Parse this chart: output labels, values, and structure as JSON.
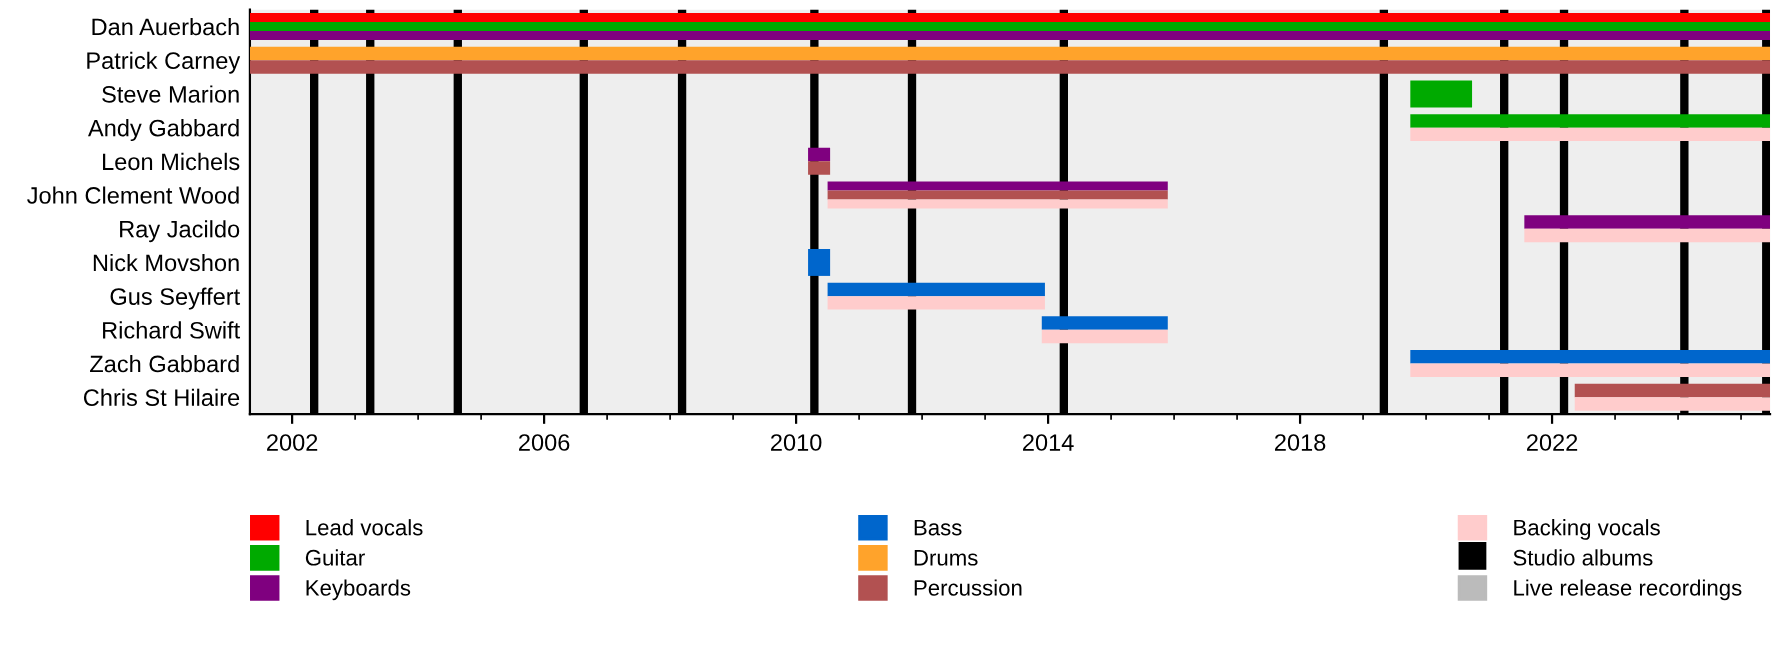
{
  "chart_data": {
    "type": "bar",
    "orientation": "horizontal",
    "categories": [
      "Dan Auerbach",
      "Patrick Carney",
      "Steve Marion",
      "Andy Gabbard",
      "Leon Michels",
      "John Clement Wood",
      "Ray Jacildo",
      "Nick Movshon",
      "Gus Seyffert",
      "Richard Swift",
      "Zach Gabbard",
      "Chris St Hilaire"
    ],
    "series": [
      {
        "name": "Lead vocals",
        "color": "#ff0000",
        "base": [
          2001.33,
          null,
          null,
          null,
          null,
          null,
          null,
          null,
          null,
          null,
          null,
          null
        ],
        "values": [
          24.13,
          null,
          null,
          null,
          null,
          null,
          null,
          null,
          null,
          null,
          null,
          null
        ]
      },
      {
        "name": "Guitar",
        "color": "#00aa00",
        "base": [
          2001.33,
          null,
          2019.75,
          2019.75,
          null,
          null,
          null,
          null,
          null,
          null,
          null,
          null
        ],
        "values": [
          24.13,
          null,
          0.98,
          5.71,
          null,
          null,
          null,
          null,
          null,
          null,
          null,
          null
        ]
      },
      {
        "name": "Keyboards",
        "color": "#7f007f",
        "base": [
          2001.33,
          null,
          null,
          null,
          2010.19,
          2010.5,
          2021.56,
          null,
          null,
          null,
          null,
          null
        ],
        "values": [
          24.13,
          null,
          null,
          null,
          0.35,
          5.4,
          3.9,
          null,
          null,
          null,
          null,
          null
        ]
      },
      {
        "name": "Bass",
        "color": "#0066cc",
        "base": [
          null,
          null,
          null,
          null,
          null,
          null,
          null,
          2010.19,
          2010.5,
          2013.9,
          2019.75,
          null
        ],
        "values": [
          null,
          null,
          null,
          null,
          null,
          null,
          null,
          0.35,
          3.45,
          2.0,
          5.71,
          null
        ]
      },
      {
        "name": "Drums",
        "color": "#ffa32b",
        "base": [
          null,
          2001.33,
          null,
          null,
          null,
          null,
          null,
          null,
          null,
          null,
          null,
          null
        ],
        "values": [
          null,
          24.13,
          null,
          null,
          null,
          null,
          null,
          null,
          null,
          null,
          null,
          null
        ]
      },
      {
        "name": "Percussion",
        "color": "#b25151",
        "base": [
          null,
          2001.33,
          null,
          null,
          2010.19,
          2010.5,
          null,
          null,
          null,
          null,
          null,
          2022.36
        ],
        "values": [
          null,
          24.13,
          null,
          null,
          0.35,
          5.4,
          null,
          null,
          null,
          null,
          null,
          3.1
        ]
      },
      {
        "name": "Backing vocals",
        "color": "#ffcccc",
        "base": [
          null,
          null,
          null,
          2019.75,
          null,
          2010.5,
          2021.56,
          null,
          2010.5,
          2013.9,
          2019.75,
          2022.36
        ],
        "values": [
          null,
          null,
          null,
          5.71,
          null,
          5.4,
          3.9,
          null,
          3.45,
          2.0,
          5.71,
          3.1
        ]
      },
      {
        "name": "Live release recordings",
        "color": "#bbbbbb",
        "values": [
          null,
          null,
          null,
          null,
          null,
          null,
          null,
          null,
          null,
          null,
          null,
          null
        ]
      }
    ],
    "ref_lines": [
      {
        "axis": "x",
        "value": 2002.35,
        "label": "Studio albums",
        "color": "#000000"
      },
      {
        "axis": "x",
        "value": 2003.24,
        "label": null,
        "color": "#000000"
      },
      {
        "axis": "x",
        "value": 2004.63,
        "label": null,
        "color": "#000000"
      },
      {
        "axis": "x",
        "value": 2006.63,
        "label": null,
        "color": "#000000"
      },
      {
        "axis": "x",
        "value": 2008.19,
        "label": null,
        "color": "#000000"
      },
      {
        "axis": "x",
        "value": 2010.29,
        "label": null,
        "color": "#000000"
      },
      {
        "axis": "x",
        "value": 2011.84,
        "label": null,
        "color": "#000000"
      },
      {
        "axis": "x",
        "value": 2014.25,
        "label": null,
        "color": "#000000"
      },
      {
        "axis": "x",
        "value": 2019.33,
        "label": null,
        "color": "#000000"
      },
      {
        "axis": "x",
        "value": 2021.24,
        "label": null,
        "color": "#000000"
      },
      {
        "axis": "x",
        "value": 2022.19,
        "label": null,
        "color": "#000000"
      },
      {
        "axis": "x",
        "value": 2024.1,
        "label": null,
        "color": "#000000"
      },
      {
        "axis": "x",
        "value": 2025.4,
        "label": null,
        "color": "#000000"
      }
    ],
    "xlim": [
      2001.33,
      2025.46
    ],
    "xticks": [
      2002,
      2006,
      2010,
      2014,
      2018,
      2022
    ],
    "grid": false,
    "legend": "bottom"
  }
}
